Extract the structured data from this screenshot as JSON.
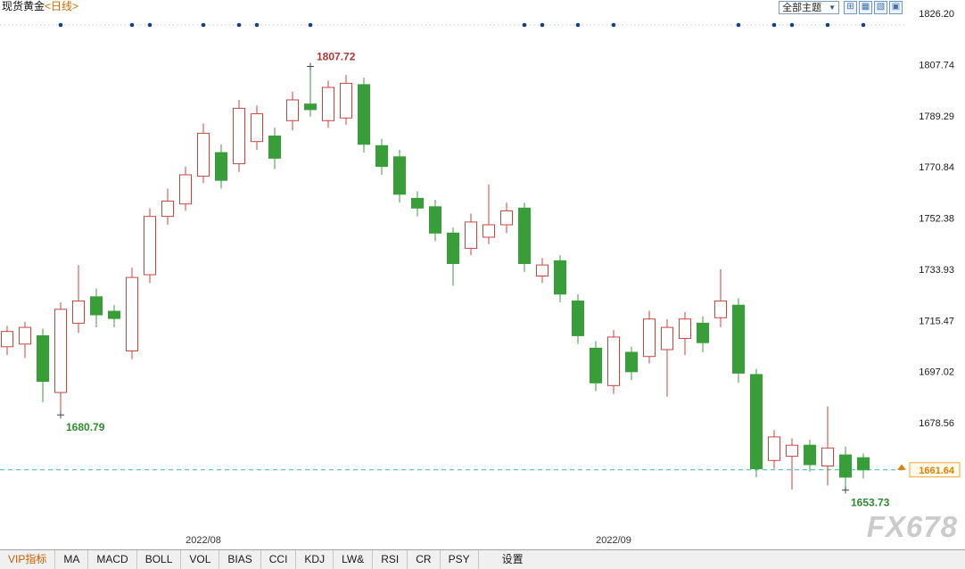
{
  "header": {
    "symbol": "现货黄金",
    "period": "<日线>",
    "theme_dropdown": "全部主题",
    "dropdown_arrow": "▼",
    "layout_icons": [
      "⊞",
      "▦",
      "▧",
      "▣"
    ]
  },
  "chart_data": {
    "type": "candlestick",
    "title": "现货黄金 日线",
    "y_axis_labels": [
      "1826.20",
      "1807.74",
      "1789.29",
      "1770.84",
      "1752.38",
      "1733.93",
      "1715.47",
      "1697.02",
      "1678.56"
    ],
    "x_axis_labels": [
      {
        "label": "2022/08",
        "index": 11
      },
      {
        "label": "2022/09",
        "index": 34
      }
    ],
    "current_price": "1661.64",
    "annotations": {
      "high": {
        "label": "1807.72",
        "index": 17,
        "value": 1807.72
      },
      "low1": {
        "label": "1680.79",
        "index": 3,
        "value": 1680.79
      },
      "low2": {
        "label": "1653.73",
        "index": 47,
        "value": 1653.73
      }
    },
    "event_dot_indices": [
      3,
      7,
      8,
      11,
      13,
      14,
      17,
      29,
      30,
      32,
      34,
      41,
      43,
      44,
      46,
      48
    ],
    "colors": {
      "up": "#c9463d",
      "down": "#389e38",
      "current_line": "#35b8b8",
      "tag_border": "#f0a22e",
      "tag_bg": "#fffbea",
      "tag_text": "#e07f00",
      "dot": "#16427a",
      "high_label": "#b23636",
      "low_label": "#2e8b2e"
    },
    "candles": [
      {
        "o": 1706.0,
        "h": 1713.5,
        "l": 1703.0,
        "c": 1711.5
      },
      {
        "o": 1707.0,
        "h": 1715.0,
        "l": 1702.0,
        "c": 1713.0
      },
      {
        "o": 1710.0,
        "h": 1712.5,
        "l": 1686.0,
        "c": 1693.5
      },
      {
        "o": 1689.5,
        "h": 1722.0,
        "l": 1680.79,
        "c": 1719.5
      },
      {
        "o": 1714.5,
        "h": 1735.5,
        "l": 1711.0,
        "c": 1722.5
      },
      {
        "o": 1724.0,
        "h": 1727.0,
        "l": 1713.0,
        "c": 1717.5
      },
      {
        "o": 1718.8,
        "h": 1721.0,
        "l": 1713.0,
        "c": 1716.2
      },
      {
        "o": 1704.5,
        "h": 1734.5,
        "l": 1701.5,
        "c": 1731.0
      },
      {
        "o": 1732.0,
        "h": 1756.0,
        "l": 1729.0,
        "c": 1753.0
      },
      {
        "o": 1753.0,
        "h": 1763.0,
        "l": 1750.0,
        "c": 1758.5
      },
      {
        "o": 1757.5,
        "h": 1771.0,
        "l": 1755.0,
        "c": 1768.0
      },
      {
        "o": 1767.5,
        "h": 1786.5,
        "l": 1765.0,
        "c": 1783.0
      },
      {
        "o": 1776.0,
        "h": 1779.0,
        "l": 1763.0,
        "c": 1766.0
      },
      {
        "o": 1772.0,
        "h": 1795.0,
        "l": 1769.0,
        "c": 1792.0
      },
      {
        "o": 1780.0,
        "h": 1793.0,
        "l": 1777.0,
        "c": 1790.0
      },
      {
        "o": 1782.0,
        "h": 1785.0,
        "l": 1770.0,
        "c": 1774.0
      },
      {
        "o": 1787.5,
        "h": 1798.0,
        "l": 1784.0,
        "c": 1795.0
      },
      {
        "o": 1793.5,
        "h": 1807.72,
        "l": 1789.0,
        "c": 1791.5
      },
      {
        "o": 1787.5,
        "h": 1802.0,
        "l": 1785.0,
        "c": 1799.5
      },
      {
        "o": 1788.5,
        "h": 1804.0,
        "l": 1786.0,
        "c": 1801.0
      },
      {
        "o": 1800.5,
        "h": 1803.0,
        "l": 1776.0,
        "c": 1779.0
      },
      {
        "o": 1778.5,
        "h": 1781.0,
        "l": 1768.0,
        "c": 1771.0
      },
      {
        "o": 1774.5,
        "h": 1777.0,
        "l": 1758.0,
        "c": 1761.0
      },
      {
        "o": 1759.5,
        "h": 1762.0,
        "l": 1753.0,
        "c": 1756.0
      },
      {
        "o": 1756.5,
        "h": 1759.0,
        "l": 1744.0,
        "c": 1747.0
      },
      {
        "o": 1747.0,
        "h": 1749.0,
        "l": 1728.0,
        "c": 1736.0
      },
      {
        "o": 1741.5,
        "h": 1754.0,
        "l": 1739.0,
        "c": 1751.0
      },
      {
        "o": 1745.5,
        "h": 1764.5,
        "l": 1743.0,
        "c": 1750.0
      },
      {
        "o": 1750.0,
        "h": 1758.0,
        "l": 1747.0,
        "c": 1755.0
      },
      {
        "o": 1756.0,
        "h": 1758.0,
        "l": 1733.0,
        "c": 1736.0
      },
      {
        "o": 1731.5,
        "h": 1738.0,
        "l": 1729.0,
        "c": 1735.5
      },
      {
        "o": 1737.0,
        "h": 1739.0,
        "l": 1722.0,
        "c": 1725.0
      },
      {
        "o": 1722.5,
        "h": 1725.0,
        "l": 1707.0,
        "c": 1710.0
      },
      {
        "o": 1705.5,
        "h": 1708.0,
        "l": 1690.0,
        "c": 1693.0
      },
      {
        "o": 1692.0,
        "h": 1712.0,
        "l": 1689.0,
        "c": 1709.5
      },
      {
        "o": 1704.0,
        "h": 1706.0,
        "l": 1694.0,
        "c": 1697.0
      },
      {
        "o": 1702.5,
        "h": 1719.0,
        "l": 1700.0,
        "c": 1716.0
      },
      {
        "o": 1705.0,
        "h": 1716.0,
        "l": 1688.0,
        "c": 1713.0
      },
      {
        "o": 1709.0,
        "h": 1718.5,
        "l": 1703.0,
        "c": 1716.0
      },
      {
        "o": 1714.5,
        "h": 1717.0,
        "l": 1704.0,
        "c": 1707.5
      },
      {
        "o": 1716.5,
        "h": 1734.0,
        "l": 1713.0,
        "c": 1722.5
      },
      {
        "o": 1721.0,
        "h": 1723.5,
        "l": 1693.0,
        "c": 1696.5
      },
      {
        "o": 1696.0,
        "h": 1698.0,
        "l": 1659.0,
        "c": 1662.0
      },
      {
        "o": 1665.0,
        "h": 1676.0,
        "l": 1662.0,
        "c": 1673.5
      },
      {
        "o": 1666.5,
        "h": 1673.0,
        "l": 1654.5,
        "c": 1670.5
      },
      {
        "o": 1670.5,
        "h": 1672.5,
        "l": 1661.0,
        "c": 1663.5
      },
      {
        "o": 1663.0,
        "h": 1684.5,
        "l": 1656.0,
        "c": 1669.5
      },
      {
        "o": 1667.0,
        "h": 1670.0,
        "l": 1653.73,
        "c": 1659.0
      },
      {
        "o": 1666.0,
        "h": 1667.5,
        "l": 1658.5,
        "c": 1661.64
      }
    ]
  },
  "footer": {
    "indicators": [
      "VIP指标",
      "MA",
      "MACD",
      "BOLL",
      "VOL",
      "BIAS",
      "CCI",
      "KDJ",
      "LW&",
      "RSI",
      "CR",
      "PSY"
    ],
    "settings": "设置"
  },
  "watermark": "FX678"
}
